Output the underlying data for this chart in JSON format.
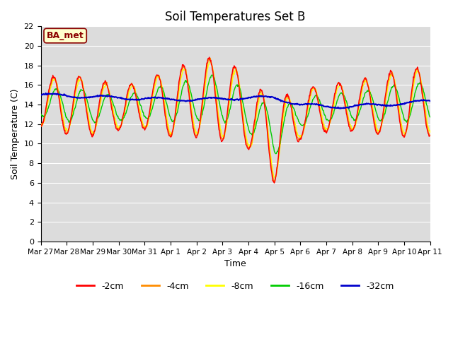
{
  "title": "Soil Temperatures Set B",
  "xlabel": "Time",
  "ylabel": "Soil Temperature (C)",
  "ylim": [
    0,
    22
  ],
  "yticks": [
    0,
    2,
    4,
    6,
    8,
    10,
    12,
    14,
    16,
    18,
    20,
    22
  ],
  "annotation": "BA_met",
  "bg_color": "#dcdcdc",
  "legend_labels": [
    "-2cm",
    "-4cm",
    "-8cm",
    "-16cm",
    "-32cm"
  ],
  "legend_colors": [
    "#ff0000",
    "#ff8c00",
    "#ffff00",
    "#00cc00",
    "#0000cc"
  ],
  "x_tick_labels": [
    "Mar 27",
    "Mar 28",
    "Mar 29",
    "Mar 30",
    "Mar 31",
    "Apr 1",
    "Apr 2",
    "Apr 3",
    "Apr 4",
    "Apr 5",
    "Apr 6",
    "Apr 7",
    "Apr 8",
    "Apr 9",
    "Apr 10",
    "Apr 11"
  ]
}
